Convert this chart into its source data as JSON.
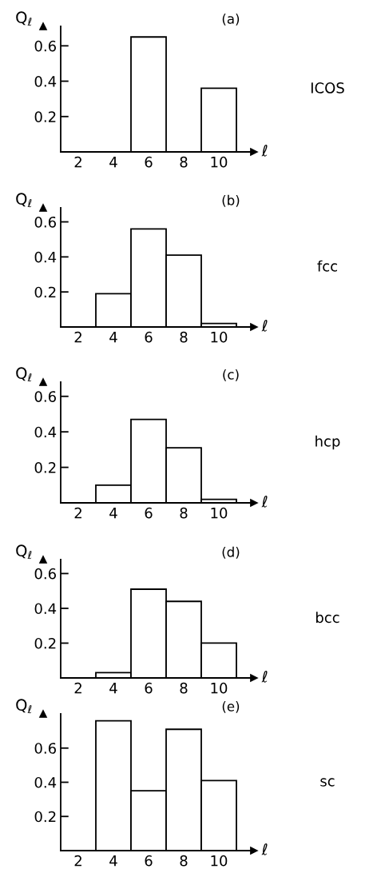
{
  "chart_data": [
    {
      "type": "histogram",
      "title": "(a)",
      "ylabel": "Q$_{ℓ}$",
      "xlabel": "ℓ",
      "bins": [
        1,
        3,
        5,
        7,
        9,
        11
      ],
      "values": [
        0,
        0,
        0.65,
        0,
        0.36
      ],
      "color": "#ffffff",
      "xlim": [
        1,
        12
      ],
      "xticks": [
        2,
        4,
        6,
        8,
        10
      ],
      "ylim": [
        0,
        0.71
      ],
      "yticks": [
        0.2,
        0.4,
        0.6
      ],
      "grid": false,
      "annotations": [
        "ICOS"
      ]
    },
    {
      "type": "histogram",
      "title": "(b)",
      "ylabel": "Q$_{ℓ}$",
      "xlabel": "ℓ",
      "bins": [
        1,
        3,
        5,
        7,
        9,
        11
      ],
      "values": [
        0,
        0.19,
        0.56,
        0.41,
        0.02
      ],
      "color": "#ffffff",
      "xlim": [
        1,
        12
      ],
      "xticks": [
        2,
        4,
        6,
        8,
        10
      ],
      "ylim": [
        0,
        0.68
      ],
      "yticks": [
        0.2,
        0.4,
        0.6
      ],
      "grid": false,
      "annotations": [
        "fcc"
      ]
    },
    {
      "type": "histogram",
      "title": "(c)",
      "ylabel": "Q$_{ℓ}$",
      "xlabel": "ℓ",
      "bins": [
        1,
        3,
        5,
        7,
        9,
        11
      ],
      "values": [
        0,
        0.1,
        0.47,
        0.31,
        0.02
      ],
      "color": "#ffffff",
      "xlim": [
        1,
        12
      ],
      "xticks": [
        2,
        4,
        6,
        8,
        10
      ],
      "ylim": [
        0,
        0.68
      ],
      "yticks": [
        0.2,
        0.4,
        0.6
      ],
      "grid": false,
      "annotations": [
        "hcp"
      ]
    },
    {
      "type": "histogram",
      "title": "(d)",
      "ylabel": "Q$_{ℓ}$",
      "xlabel": "ℓ",
      "bins": [
        1,
        3,
        5,
        7,
        9,
        11
      ],
      "values": [
        0,
        0.03,
        0.51,
        0.44,
        0.2
      ],
      "color": "#ffffff",
      "xlim": [
        1,
        12
      ],
      "xticks": [
        2,
        4,
        6,
        8,
        10
      ],
      "ylim": [
        0,
        0.68
      ],
      "yticks": [
        0.2,
        0.4,
        0.6
      ],
      "grid": false,
      "annotations": [
        "bcc"
      ]
    },
    {
      "type": "histogram",
      "title": "(e)",
      "ylabel": "Q$_{ℓ}$",
      "xlabel": "ℓ",
      "bins": [
        1,
        3,
        5,
        7,
        9,
        11
      ],
      "values": [
        0,
        0.76,
        0.35,
        0.71,
        0.41
      ],
      "color": "#ffffff",
      "xlim": [
        1,
        12
      ],
      "xticks": [
        2,
        4,
        6,
        8,
        10
      ],
      "ylim": [
        0,
        0.8
      ],
      "yticks": [
        0.2,
        0.4,
        0.6
      ],
      "grid": false,
      "annotations": [
        "sc"
      ]
    }
  ]
}
